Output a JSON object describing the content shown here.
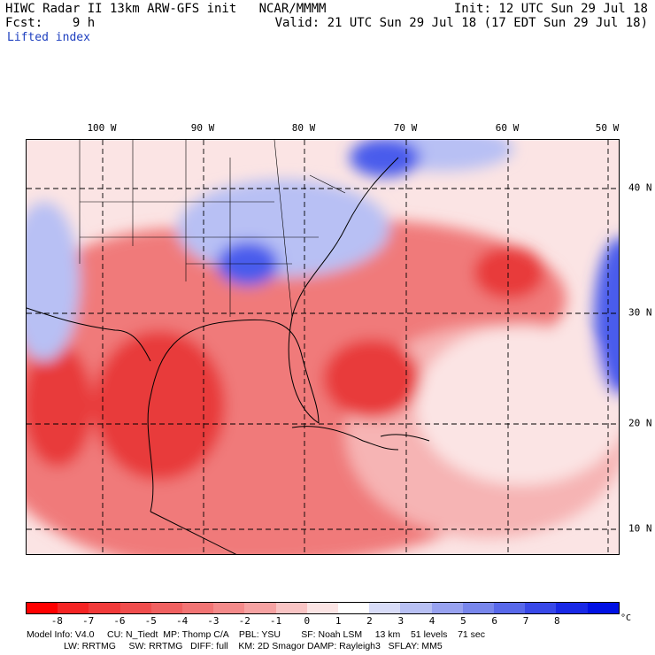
{
  "header": {
    "line1_left": "HIWC Radar II 13km ARW-GFS init   NCAR/MMMM",
    "line1_right": "Init: 12 UTC Sun 29 Jul 18",
    "line2_left": "Fcst:    9 h",
    "line2_right": "Valid: 21 UTC Sun 29 Jul 18 (17 EDT Sun 29 Jul 18)",
    "field": "Lifted index"
  },
  "map": {
    "lon_labels": [
      "100 W",
      "90 W",
      "80 W",
      "70 W",
      "60 W",
      "50 W"
    ],
    "lat_labels": [
      "40 N",
      "30 N",
      "20 N",
      "10 N"
    ],
    "colors": {
      "very_unstable": "#e83a3a",
      "unstable": "#f07a7a",
      "slightly_unstable": "#f6b4b4",
      "neutral": "#fbe4e4",
      "stable": "#b8c0f4",
      "very_stable": "#4a5cec"
    }
  },
  "colorbar": {
    "ticks": [
      "-8",
      "-7",
      "-6",
      "-5",
      "-4",
      "-3",
      "-2",
      "-1",
      "0",
      "1",
      "2",
      "3",
      "4",
      "5",
      "6",
      "7",
      "8"
    ],
    "unit": "°C",
    "colors": [
      "#ff0000",
      "#f52424",
      "#f23a3a",
      "#f04d4d",
      "#f06060",
      "#f27474",
      "#f48a8a",
      "#f6a2a2",
      "#f9c4c4",
      "#fbe4e4",
      "#ffffff",
      "#d8dcf8",
      "#b8c0f4",
      "#98a2f0",
      "#7886ec",
      "#5868ea",
      "#3848e8",
      "#1828e6",
      "#0010e4"
    ]
  },
  "footer": {
    "line1": "Model Info: V4.0     CU: N_Tiedt  MP: Thomp C/A    PBL: YSU        SF: Noah LSM     13 km    51 levels    71 sec",
    "line2": "LW: RRTMG     SW: RRTMG   DIFF: full    KM: 2D Smagor DAMP: Rayleigh3   SFLAY: MM5"
  }
}
